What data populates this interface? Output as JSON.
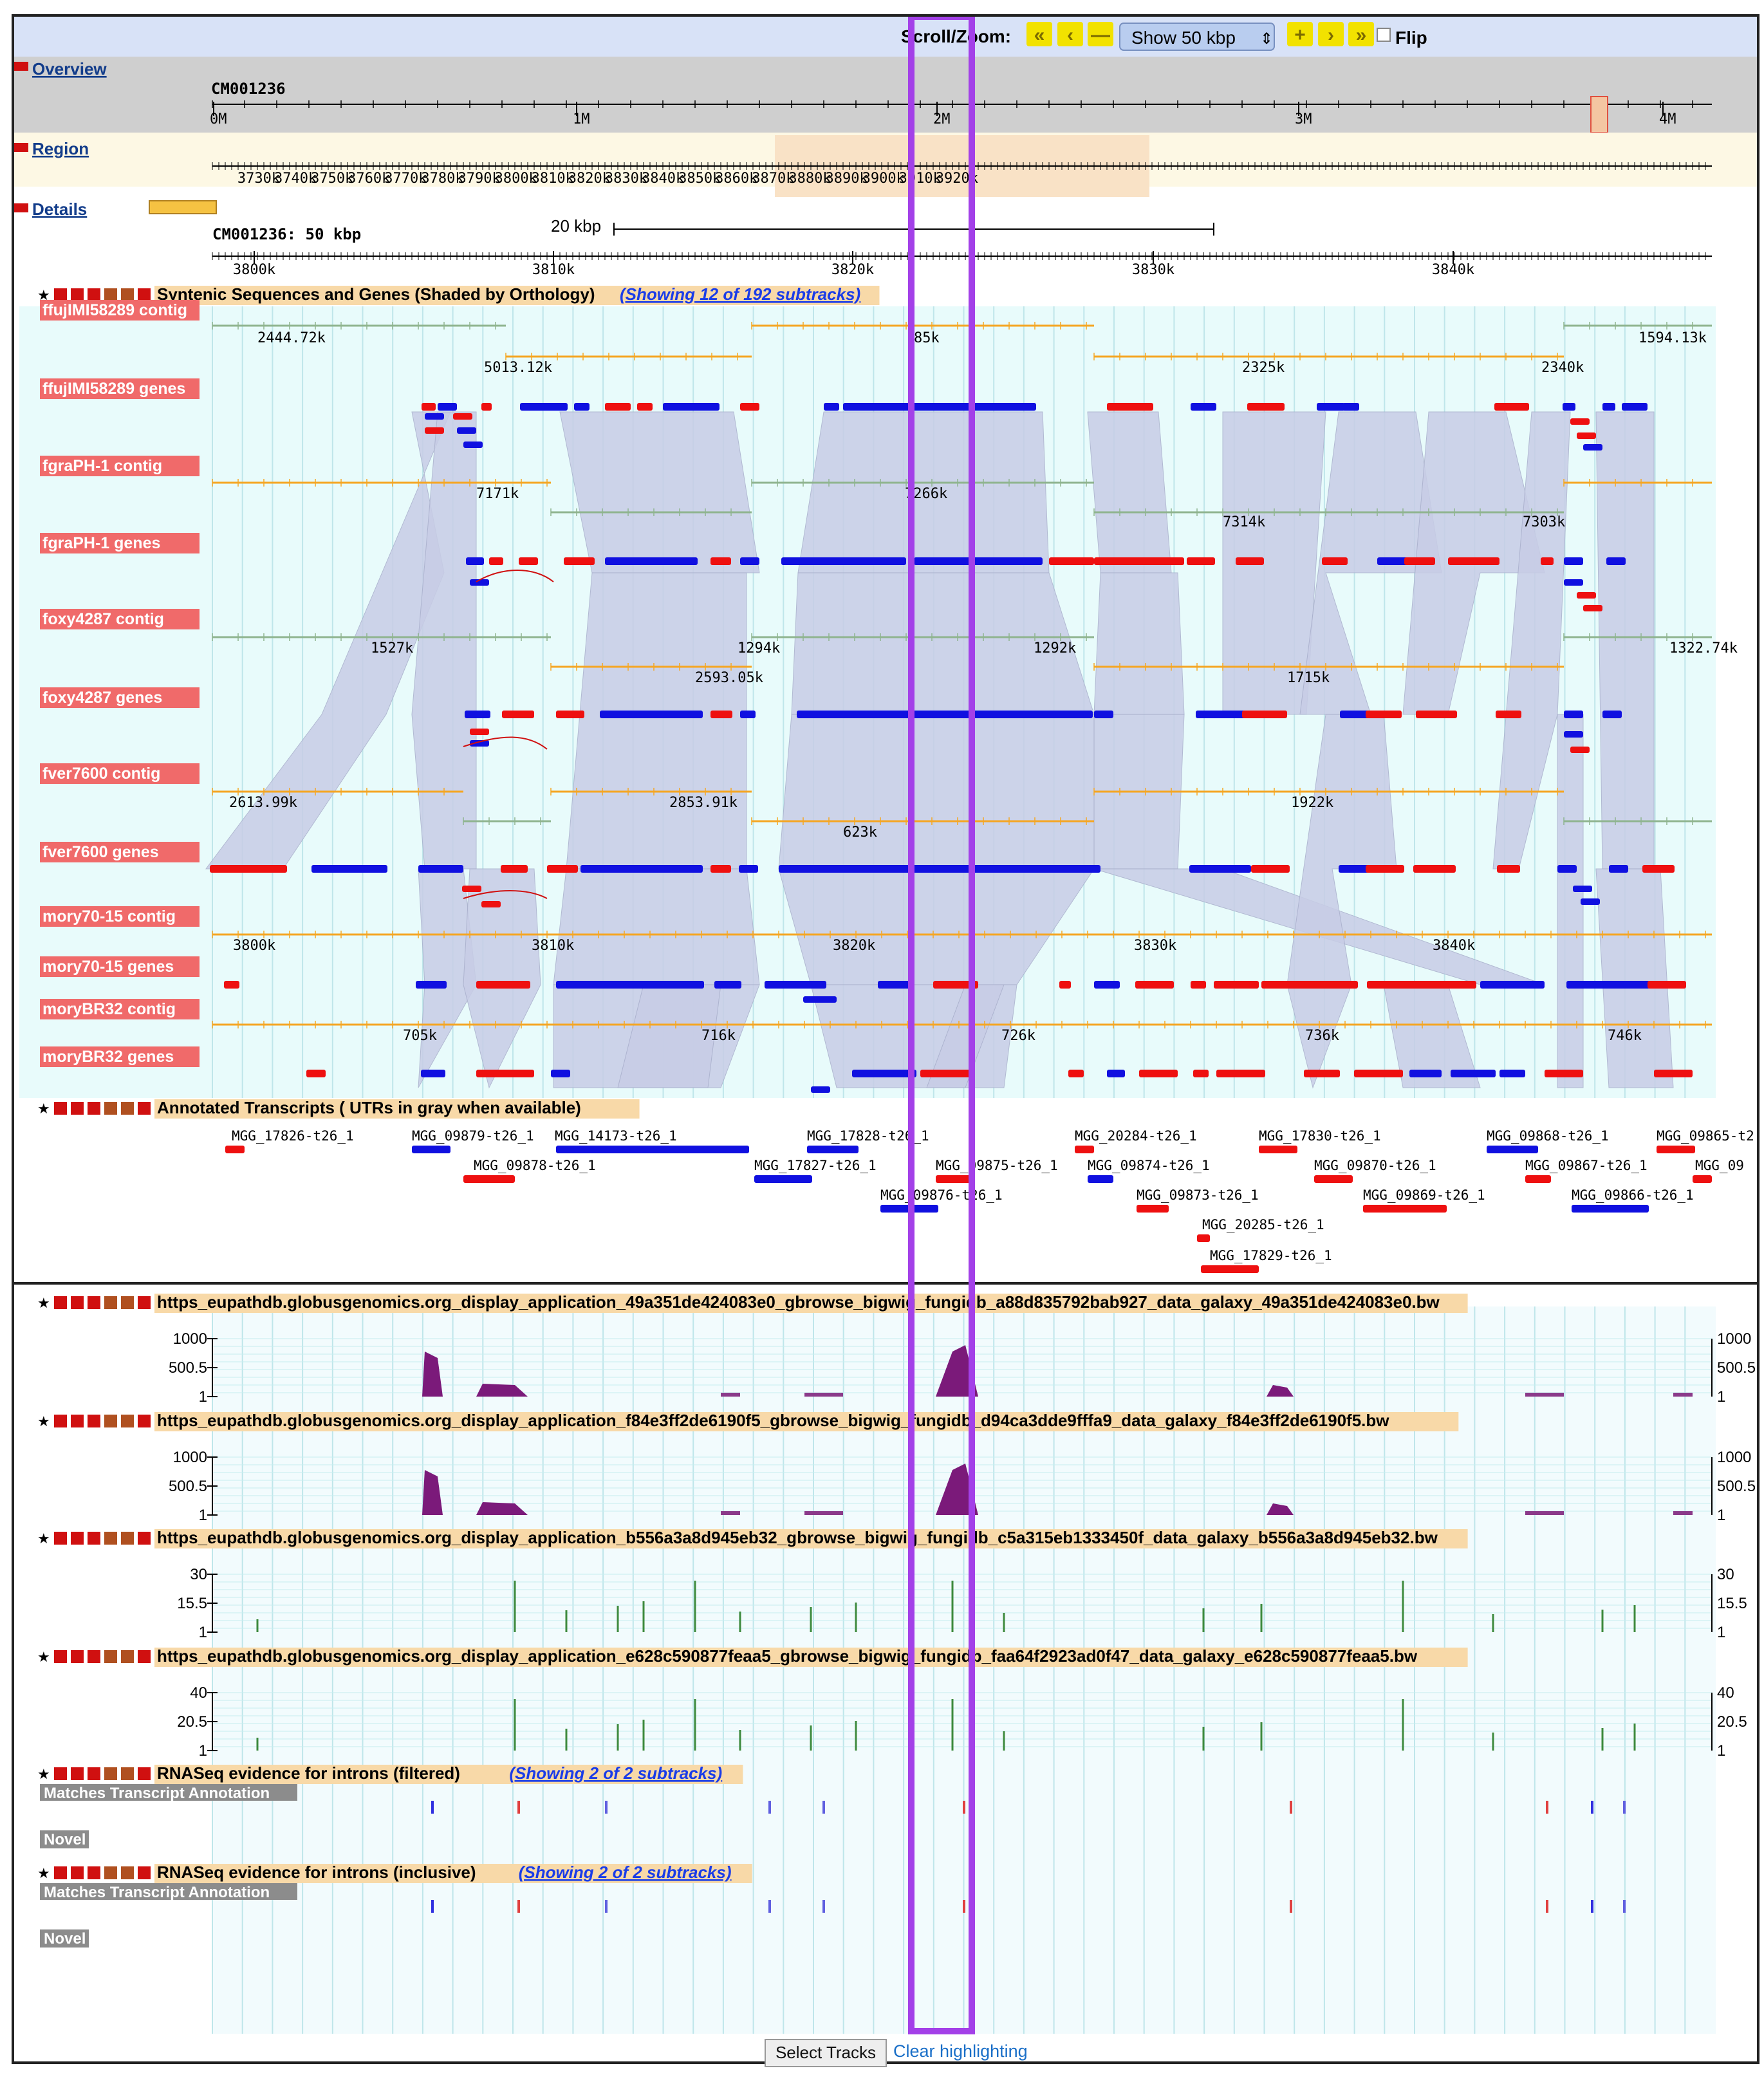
{
  "navbar": {
    "scroll_zoom_label": "Scroll/Zoom:",
    "zoom_select": "Show 50 kbp",
    "flip_label": "Flip",
    "buttons": [
      "fast-left-icon",
      "left-icon",
      "zoom-out-icon",
      "zoom-in-icon",
      "right-icon",
      "fast-right-icon"
    ]
  },
  "overview": {
    "label": "Overview",
    "chrom": "CM001236",
    "ticks": [
      "0M",
      "1M",
      "2M",
      "3M",
      "4M"
    ]
  },
  "region": {
    "label": "Region",
    "ticks": [
      "3730k",
      "3740k",
      "3750k",
      "3760k",
      "3770k",
      "3780k",
      "3790k",
      "3800k",
      "3810k",
      "3820k",
      "3830k",
      "3840k",
      "3850k",
      "3860k",
      "3870k",
      "3880k",
      "3890k",
      "3900k",
      "3910k",
      "3920k"
    ]
  },
  "details": {
    "label": "Details",
    "chrom_label": "CM001236: 50 kbp",
    "scale_label": "20 kbp",
    "ticks": [
      "3800k",
      "3810k",
      "3820k",
      "3830k",
      "3840k"
    ]
  },
  "synteny": {
    "title": "Syntenic Sequences and Genes (Shaded by Orthology)",
    "subtracks_link": "(Showing 12 of 192 subtracks)",
    "tracks": [
      {
        "label": "ffujIMI58289 contig",
        "numbers": [
          "2444.72k",
          "5013.12k",
          "85k",
          "2325k",
          "2340k",
          "1594.13k"
        ]
      },
      {
        "label": "ffujIMI58289 genes"
      },
      {
        "label": "fgraPH-1 contig",
        "numbers": [
          "7171k",
          "7266k",
          "7314k",
          "7303k"
        ]
      },
      {
        "label": "fgraPH-1 genes"
      },
      {
        "label": "foxy4287 contig",
        "numbers": [
          "1527k",
          "1294k",
          "1292k",
          "1322.74k",
          "2593.05k",
          "1715k"
        ]
      },
      {
        "label": "foxy4287 genes"
      },
      {
        "label": "fver7600 contig",
        "numbers": [
          "2613.99k",
          "2853.91k",
          "1922k",
          "623k"
        ]
      },
      {
        "label": "fver7600 genes"
      },
      {
        "label": "mory70-15 contig",
        "numbers": [
          "3800k",
          "3810k",
          "3820k",
          "3830k",
          "3840k"
        ]
      },
      {
        "label": "mory70-15 genes"
      },
      {
        "label": "moryBR32 contig",
        "numbers": [
          "705k",
          "716k",
          "726k",
          "736k",
          "746k"
        ]
      },
      {
        "label": "moryBR32 genes"
      }
    ]
  },
  "annotated": {
    "title": "Annotated Transcripts ( UTRs in gray when available)",
    "genes": [
      "MGG_17826-t26_1",
      "MGG_09879-t26_1",
      "MGG_14173-t26_1",
      "MGG_17828-t26_1",
      "MGG_20284-t26_1",
      "MGG_17830-t26_1",
      "MGG_09868-t26_1",
      "MGG_09865-t2",
      "MGG_09878-t26_1",
      "MGG_17827-t26_1",
      "MGG_09875-t26_1",
      "MGG_09874-t26_1",
      "MGG_09870-t26_1",
      "MGG_09867-t26_1",
      "MGG_09",
      "MGG_09876-t26_1",
      "MGG_09873-t26_1",
      "MGG_09869-t26_1",
      "MGG_09866-t26_1",
      "MGG_20285-t26_1",
      "MGG_17829-t26_1"
    ]
  },
  "bigwig": [
    {
      "title": "https_eupathdb.globusgenomics.org_display_application_49a351de424083e0_gbrowse_bigwig_fungidb_a88d835792bab927_data_galaxy_49a351de424083e0.bw",
      "scale": [
        "1000",
        "500.5",
        "1"
      ]
    },
    {
      "title": "https_eupathdb.globusgenomics.org_display_application_f84e3ff2de6190f5_gbrowse_bigwig_fungidb_d94ca3dde9fffa9_data_galaxy_f84e3ff2de6190f5.bw",
      "scale": [
        "1000",
        "500.5",
        "1"
      ]
    },
    {
      "title": "https_eupathdb.globusgenomics.org_display_application_b556a3a8d945eb32_gbrowse_bigwig_fungidb_c5a315eb1333450f_data_galaxy_b556a3a8d945eb32.bw",
      "scale": [
        "30",
        "15.5",
        "1"
      ]
    },
    {
      "title": "https_eupathdb.globusgenomics.org_display_application_e628c590877feaa5_gbrowse_bigwig_fungidb_faa64f2923ad0f47_data_galaxy_e628c590877feaa5.bw",
      "scale": [
        "40",
        "20.5",
        "1"
      ]
    }
  ],
  "rnaseq": [
    {
      "title": "RNASeq evidence for introns (filtered)",
      "link": "(Showing 2 of 2 subtracks)",
      "sub": [
        "Matches Transcript Annotation",
        "Novel"
      ]
    },
    {
      "title": "RNASeq evidence for introns (inclusive)",
      "link": "(Showing 2 of 2 subtracks)",
      "sub": [
        "Matches Transcript Annotation",
        "Novel"
      ]
    }
  ],
  "footer": {
    "select_tracks": "Select Tracks",
    "clear_highlighting": "Clear highlighting"
  },
  "colors": {
    "forward": "#1010e0",
    "reverse": "#ee1010",
    "contig_orange": "#f5a623",
    "contig_green": "#8fb48f",
    "highlight": "#a340e8",
    "label_bg": "#f06a6a",
    "header_bg": "#f8d9a8",
    "synteny_shade": "#c8cde6"
  }
}
